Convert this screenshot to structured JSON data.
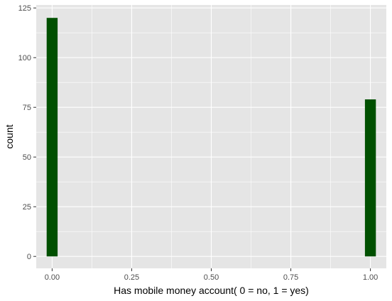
{
  "chart_data": {
    "type": "bar",
    "xlabel": "Has mobile money account( 0 = no, 1 = yes)",
    "ylabel": "count",
    "x": [
      0,
      1
    ],
    "values": [
      120,
      79
    ],
    "bar_half_width": 0.0172,
    "xlim": [
      -0.05,
      1.05
    ],
    "ylim": [
      -6.0,
      126.5
    ],
    "x_ticks": [
      0,
      0.25,
      0.5,
      0.75,
      1
    ],
    "x_tick_labels": [
      "0.00",
      "0.25",
      "0.50",
      "0.75",
      "1.00"
    ],
    "y_ticks": [
      0,
      25,
      50,
      75,
      100,
      125
    ],
    "y_tick_labels": [
      "0",
      "25",
      "50",
      "75",
      "100",
      "125"
    ],
    "grid": true,
    "colors": {
      "panel": "#e5e5e5",
      "grid": "#ffffff",
      "bar": "#005000",
      "tick": "#333333"
    }
  }
}
